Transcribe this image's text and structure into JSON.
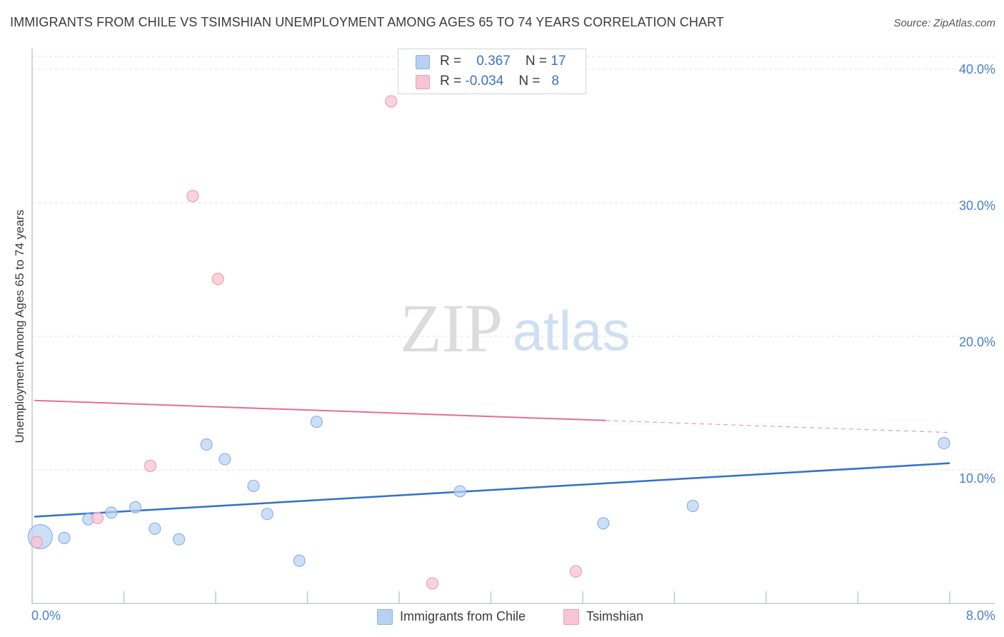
{
  "header": {
    "title": "IMMIGRANTS FROM CHILE VS TSIMSHIAN UNEMPLOYMENT AMONG AGES 65 TO 74 YEARS CORRELATION CHART",
    "source": "Source: ZipAtlas.com"
  },
  "watermark": {
    "zip": "ZIP",
    "atlas": "atlas"
  },
  "legend": {
    "series_a": {
      "r_label": "R =",
      "r_value": "0.367",
      "n_label": "N =",
      "n_value": "17"
    },
    "series_b": {
      "r_label": "R =",
      "r_value": "-0.034",
      "n_label": "N =",
      "n_value": "8"
    }
  },
  "colors": {
    "blue_fill": "#b7d1f3",
    "blue_stroke": "#8fb2e3",
    "blue_line": "#2f72c9",
    "pink_fill": "#f8c4d3",
    "pink_stroke": "#ee9fb6",
    "pink_line": "#e76d96",
    "grid": "#dfe3e8",
    "axis": "#c4c9d0"
  },
  "chart_data": {
    "type": "scatter",
    "title": "IMMIGRANTS FROM CHILE VS TSIMSHIAN UNEMPLOYMENT AMONG AGES 65 TO 74 YEARS CORRELATION CHART",
    "xlabel": "",
    "ylabel": "Unemployment Among Ages 65 to 74 years",
    "xlim": [
      0,
      8
    ],
    "ylim": [
      0,
      40
    ],
    "x_tick_labels": [
      "0.0%",
      "8.0%"
    ],
    "y_ticks": [
      10,
      20,
      30,
      40
    ],
    "y_tick_labels": [
      "10.0%",
      "20.0%",
      "30.0%",
      "40.0%"
    ],
    "grid": true,
    "legend_position": "top-center",
    "series": [
      {
        "name": "Immigrants from Chile",
        "color": "#b7d1f3",
        "points": [
          {
            "x": 0.07,
            "y": 5.0,
            "big": true
          },
          {
            "x": 0.28,
            "y": 4.9
          },
          {
            "x": 0.49,
            "y": 6.3
          },
          {
            "x": 0.69,
            "y": 6.8
          },
          {
            "x": 0.9,
            "y": 7.2
          },
          {
            "x": 1.07,
            "y": 5.6
          },
          {
            "x": 1.28,
            "y": 4.8
          },
          {
            "x": 1.52,
            "y": 11.9
          },
          {
            "x": 1.68,
            "y": 10.8
          },
          {
            "x": 1.93,
            "y": 8.8
          },
          {
            "x": 2.05,
            "y": 6.7
          },
          {
            "x": 2.33,
            "y": 3.2
          },
          {
            "x": 2.48,
            "y": 13.6
          },
          {
            "x": 3.73,
            "y": 8.4
          },
          {
            "x": 4.98,
            "y": 6.0
          },
          {
            "x": 5.76,
            "y": 7.3
          },
          {
            "x": 7.95,
            "y": 12.0
          }
        ],
        "trend": {
          "x1": 0.02,
          "y1": 6.5,
          "x2": 8.0,
          "y2": 10.5
        }
      },
      {
        "name": "Tsimshian",
        "color": "#f8c4d3",
        "points": [
          {
            "x": 0.04,
            "y": 4.6
          },
          {
            "x": 0.57,
            "y": 6.4
          },
          {
            "x": 1.03,
            "y": 10.3
          },
          {
            "x": 1.4,
            "y": 30.5
          },
          {
            "x": 1.62,
            "y": 24.3
          },
          {
            "x": 3.13,
            "y": 37.6
          },
          {
            "x": 3.49,
            "y": 1.5
          },
          {
            "x": 4.74,
            "y": 2.4
          }
        ],
        "trend": {
          "x1": 0.02,
          "y1": 15.2,
          "x2": 5.0,
          "y2": 13.7
        },
        "trend_extension": {
          "x1": 5.0,
          "y1": 13.7,
          "x2": 8.0,
          "y2": 12.8
        }
      }
    ]
  }
}
